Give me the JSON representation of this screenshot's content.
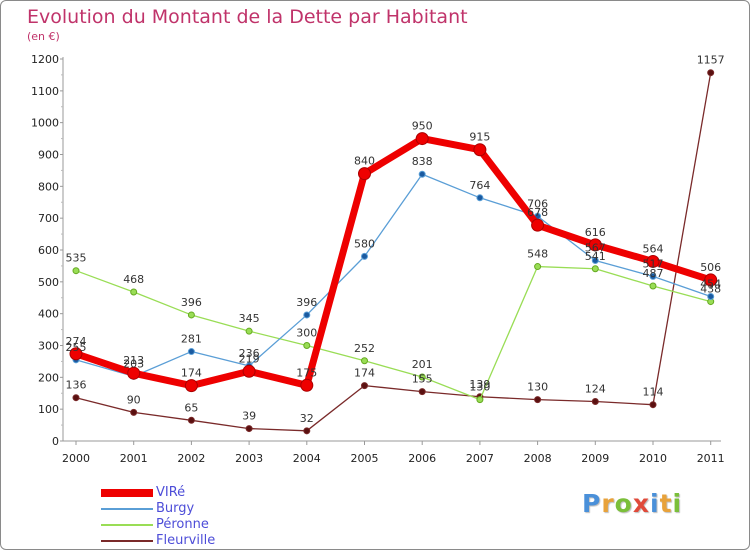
{
  "header": {
    "title": "Evolution du Montant de la Dette par Habitant",
    "subtitle": "(en €)"
  },
  "brand": {
    "text": "Proxiti",
    "letter_colors": [
      "#4a90d9",
      "#e8a23a",
      "#7bbf3a",
      "#e04a3a",
      "#4a90d9",
      "#e8a23a",
      "#7bbf3a"
    ]
  },
  "chart_data": {
    "type": "line",
    "title": "Evolution du Montant de la Dette par Habitant",
    "subtitle": "(en €)",
    "xlabel": "",
    "ylabel": "",
    "categories": [
      "2000",
      "2001",
      "2002",
      "2003",
      "2004",
      "2005",
      "2006",
      "2007",
      "2008",
      "2009",
      "2010",
      "2011"
    ],
    "ylim": [
      0,
      1200
    ],
    "yticks": [
      0,
      100,
      200,
      300,
      400,
      500,
      600,
      700,
      800,
      900,
      1000,
      1100,
      1200
    ],
    "grid": false,
    "legend_position": "bottom-left",
    "series": [
      {
        "name": "VIRé",
        "color": "#ee0000",
        "values": [
          274,
          213,
          174,
          219,
          175,
          840,
          950,
          915,
          678,
          616,
          564,
          506
        ],
        "labels": [
          "274",
          "213",
          "174",
          "219",
          "175",
          "840",
          "950",
          "915",
          "678",
          "616",
          "564",
          "506"
        ]
      },
      {
        "name": "Burgy",
        "color": "#5a9ed6",
        "values": [
          255,
          203,
          281,
          236,
          396,
          580,
          838,
          764,
          706,
          567,
          517,
          454
        ],
        "labels": [
          "255",
          "203",
          "281",
          "236",
          "396",
          "580",
          "838",
          "764",
          "706",
          "567",
          "517",
          "454"
        ]
      },
      {
        "name": "Péronne",
        "color": "#99dd55",
        "values": [
          535,
          468,
          396,
          345,
          300,
          252,
          201,
          130,
          548,
          541,
          487,
          438
        ],
        "labels": [
          "535",
          "468",
          "396",
          "345",
          "300",
          "252",
          "201",
          "130",
          "548",
          "541",
          "487",
          "438"
        ]
      },
      {
        "name": "Fleurville",
        "color": "#7a2a2a",
        "values": [
          136,
          90,
          65,
          39,
          32,
          174,
          155,
          139,
          130,
          124,
          114,
          1157
        ],
        "labels": [
          "136",
          "90",
          "65",
          "39",
          "32",
          "174",
          "155",
          "139",
          "130",
          "124",
          "114",
          "1157"
        ]
      }
    ]
  }
}
